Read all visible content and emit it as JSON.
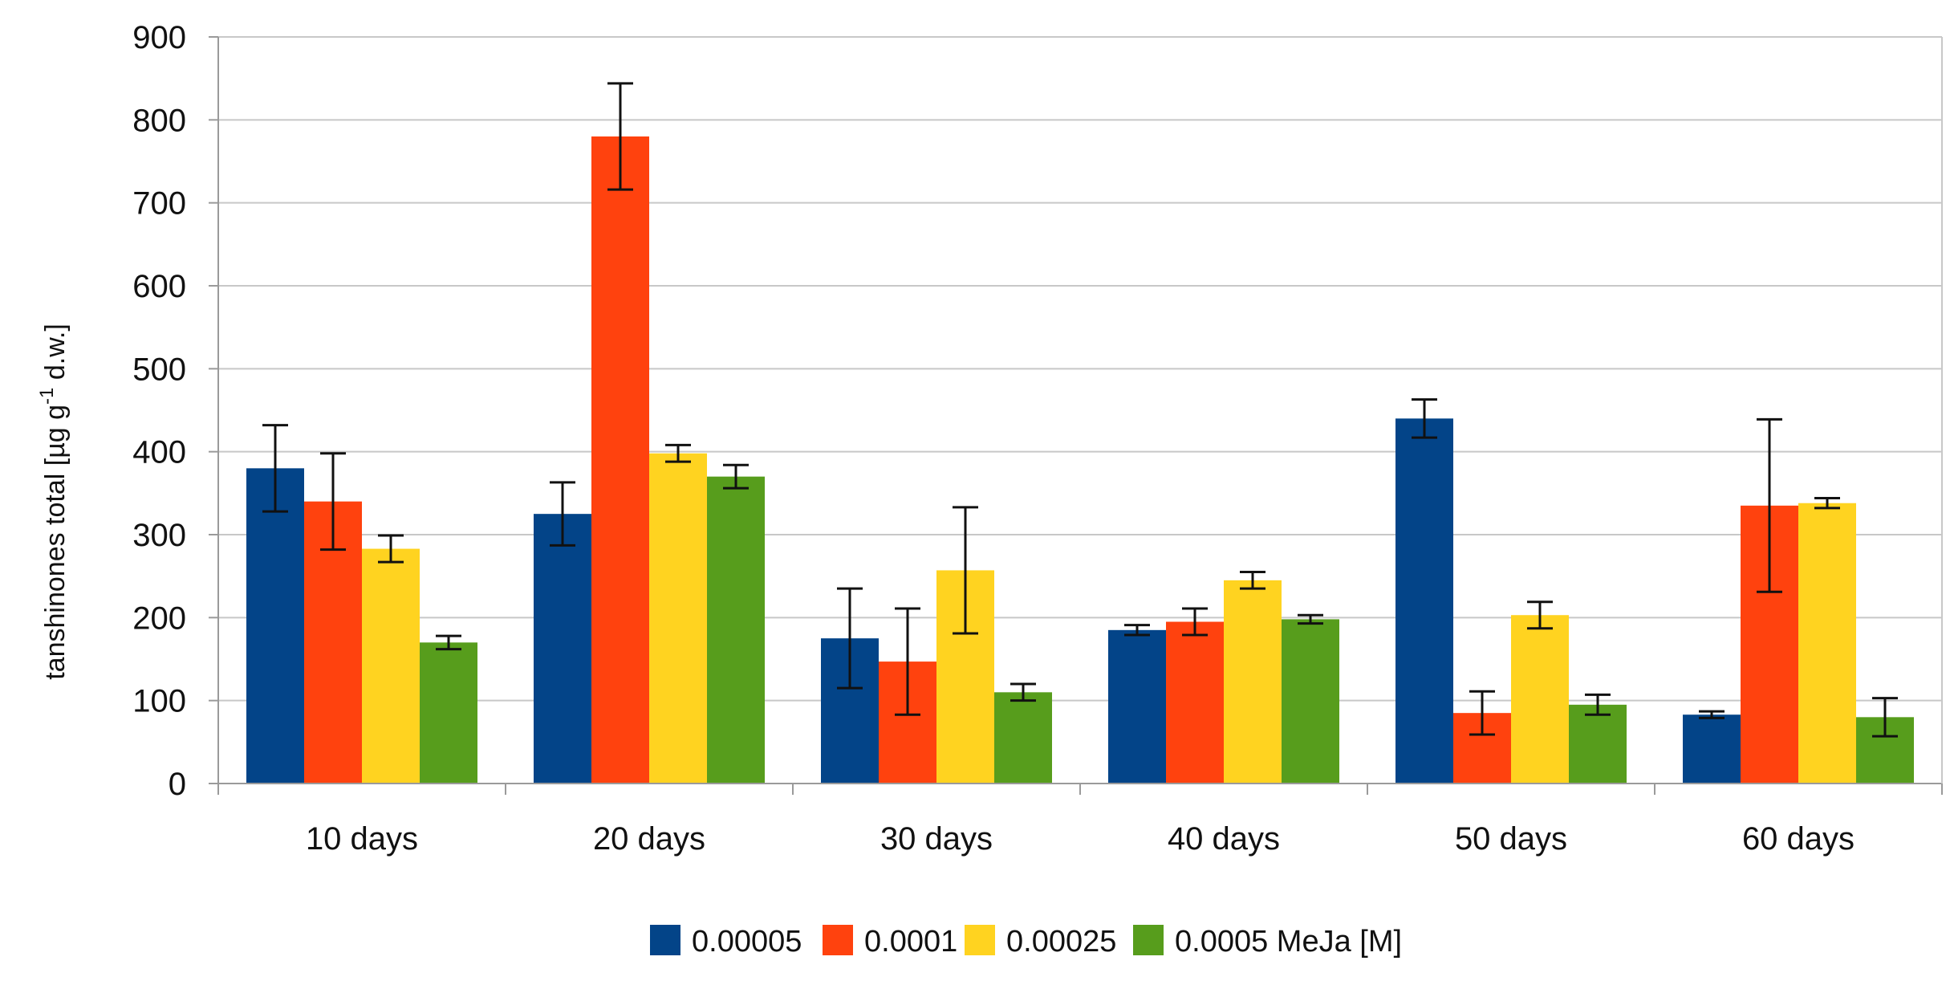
{
  "chart_data": {
    "type": "bar",
    "title": "",
    "xlabel": "",
    "ylabel": {
      "main": "tanshinones total [µg g",
      "superscript": "-1",
      "suffix": " d.w.]"
    },
    "ylim": [
      0,
      900
    ],
    "yticks": [
      0,
      100,
      200,
      300,
      400,
      500,
      600,
      700,
      800,
      900
    ],
    "categories": [
      "10 days",
      "20 days",
      "30 days",
      "40 days",
      "50 days",
      "60 days"
    ],
    "series": [
      {
        "name": "0.00005",
        "color": "#034488",
        "values": [
          380,
          325,
          175,
          185,
          440,
          83
        ],
        "errors": [
          52,
          38,
          60,
          6,
          23,
          4
        ]
      },
      {
        "name": "0.0001",
        "color": "#ff420e",
        "values": [
          340,
          780,
          147,
          195,
          85,
          335
        ],
        "errors": [
          58,
          64,
          64,
          16,
          26,
          104
        ]
      },
      {
        "name": "0.00025",
        "color": "#ffd320",
        "values": [
          283,
          398,
          257,
          245,
          203,
          338
        ],
        "errors": [
          16,
          10,
          76,
          10,
          16,
          6
        ]
      },
      {
        "name": "0.0005 MeJa [M]",
        "color": "#579d1c",
        "values": [
          170,
          370,
          110,
          198,
          95,
          80
        ],
        "errors": [
          8,
          14,
          10,
          5,
          12,
          23
        ]
      }
    ],
    "grid": true,
    "legend_position": "bottom-center"
  }
}
